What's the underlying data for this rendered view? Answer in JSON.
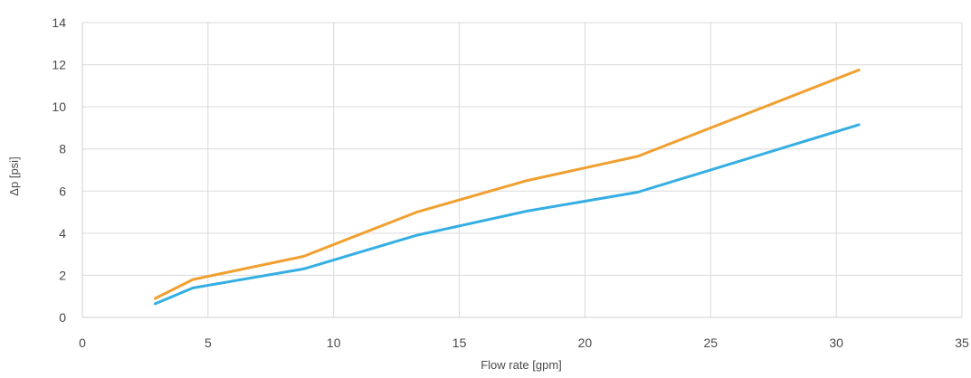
{
  "chart_data": {
    "type": "line",
    "title": "",
    "xlabel": "Flow rate [gpm]",
    "ylabel": "Δp [psi]",
    "xlim": [
      0,
      35
    ],
    "ylim": [
      0,
      14
    ],
    "x_ticks": [
      "0",
      "5",
      "10",
      "15",
      "20",
      "25",
      "30",
      "35"
    ],
    "y_ticks": [
      "0",
      "2",
      "4",
      "6",
      "8",
      "10",
      "12",
      "14"
    ],
    "grid": true,
    "legend": "none",
    "series": [
      {
        "color": "#f0a030",
        "points": [
          [
            2.9,
            0.9
          ],
          [
            4.4,
            1.8
          ],
          [
            8.8,
            2.9
          ],
          [
            13.3,
            5.0
          ],
          [
            17.7,
            6.5
          ],
          [
            22.1,
            7.65
          ],
          [
            30.9,
            11.75
          ]
        ]
      },
      {
        "color": "#35aee2",
        "points": [
          [
            2.9,
            0.65
          ],
          [
            4.4,
            1.4
          ],
          [
            8.8,
            2.3
          ],
          [
            13.3,
            3.9
          ],
          [
            17.7,
            5.05
          ],
          [
            22.1,
            5.95
          ],
          [
            30.9,
            9.15
          ]
        ]
      }
    ]
  }
}
